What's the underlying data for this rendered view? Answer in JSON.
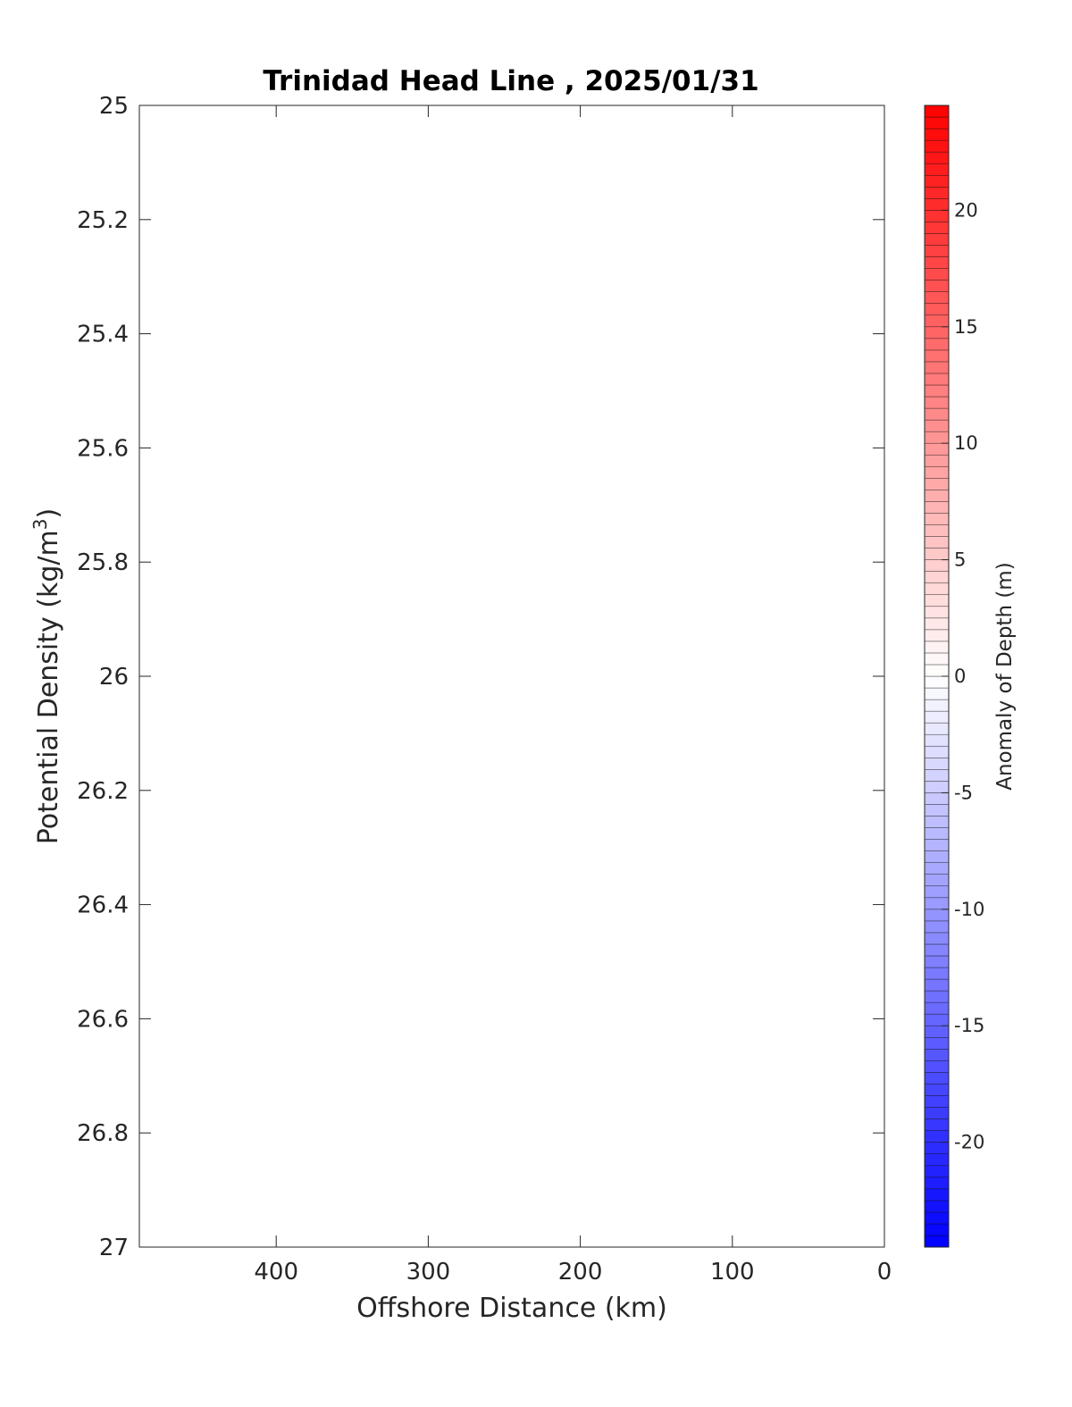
{
  "chart_data": {
    "type": "heatmap",
    "title": "Trinidad Head Line , 2025/01/31",
    "xlabel": "Offshore Distance (km)",
    "ylabel": {
      "text": "Potential Density (kg/m",
      "superscript": "3",
      "suffix": ")"
    },
    "xlim": [
      490,
      0
    ],
    "x_reversed": true,
    "x_ticks": [
      400,
      300,
      200,
      100,
      0
    ],
    "x_tick_labels": [
      "400",
      "300",
      "200",
      "100",
      "0"
    ],
    "ylim": [
      25,
      27
    ],
    "y_reversed": true,
    "y_ticks": [
      25,
      25.2,
      25.4,
      25.6,
      25.8,
      26,
      26.2,
      26.4,
      26.6,
      26.8,
      27
    ],
    "y_tick_labels": [
      "25",
      "25.2",
      "25.4",
      "25.6",
      "25.8",
      "26",
      "26.2",
      "26.4",
      "26.6",
      "26.8",
      "27"
    ],
    "values": [],
    "colorbar": {
      "label": "Anomaly of Depth (m)",
      "range": [
        -24.5,
        24.5
      ],
      "ticks": [
        20,
        15,
        10,
        5,
        0,
        -5,
        -10,
        -15,
        -20
      ],
      "tick_labels": [
        "20",
        "15",
        "10",
        "5",
        "0",
        "-5",
        "-10",
        "-15",
        "-20"
      ],
      "colormap": "blue-white-red",
      "low_color": "#0000ff",
      "mid_color": "#ffffff",
      "high_color": "#ff0000",
      "levels": 98
    }
  }
}
